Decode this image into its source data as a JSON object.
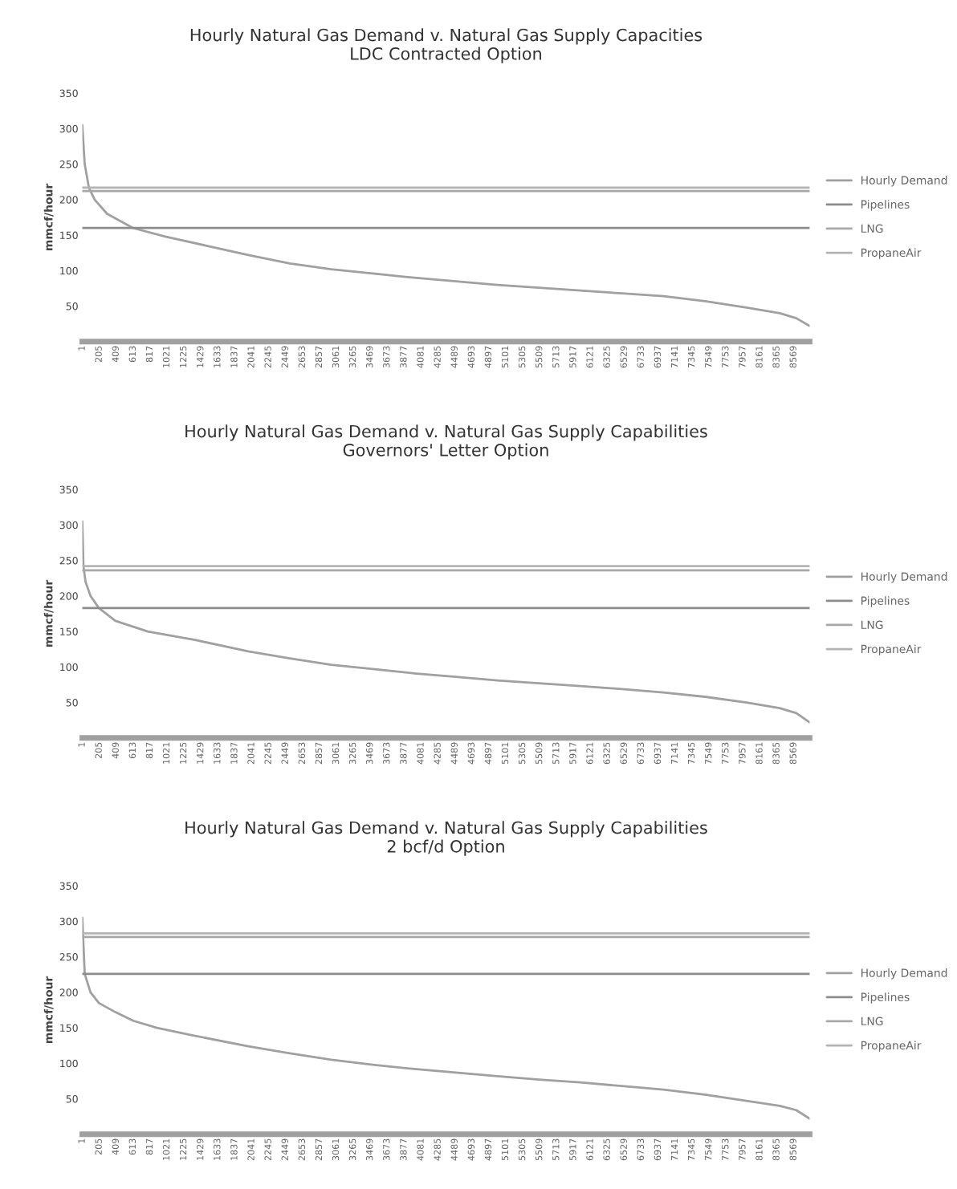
{
  "chart_data": [
    {
      "type": "line",
      "title": "Hourly Natural Gas Demand v. Natural Gas Supply Capacities\nLDC Contracted Option",
      "ylabel": "mmcf/hour",
      "xlim": [
        1,
        8760
      ],
      "ylim": [
        0,
        350
      ],
      "yticks": [
        50,
        100,
        150,
        200,
        250,
        300,
        350
      ],
      "xticks": [
        1,
        205,
        409,
        613,
        817,
        1021,
        1225,
        1429,
        1633,
        1837,
        2041,
        2245,
        2449,
        2653,
        2857,
        3061,
        3265,
        3469,
        3673,
        3877,
        4081,
        4285,
        4489,
        4693,
        4897,
        5101,
        5305,
        5509,
        5713,
        5917,
        6121,
        6325,
        6529,
        6733,
        6937,
        7141,
        7345,
        7549,
        7753,
        7957,
        8161,
        8365,
        8569
      ],
      "grid": false,
      "legend": "right",
      "marker": "none",
      "line_style": "solid",
      "series": [
        {
          "name": "Hourly Demand",
          "color": "#a0a0a0",
          "x": [
            1,
            30,
            80,
            150,
            300,
            613,
            1000,
            1500,
            2000,
            2500,
            3000,
            3500,
            4000,
            4500,
            5000,
            5500,
            6000,
            6500,
            7000,
            7500,
            8000,
            8400,
            8600,
            8760
          ],
          "values": [
            305,
            250,
            217,
            200,
            180,
            160,
            148,
            135,
            122,
            110,
            102,
            96,
            90,
            85,
            80,
            76,
            72,
            68,
            64,
            57,
            48,
            40,
            33,
            22
          ]
        },
        {
          "name": "Pipelines",
          "color": "#8c8c8c",
          "x": [
            1,
            8760
          ],
          "values": [
            160,
            160
          ]
        },
        {
          "name": "LNG",
          "color": "#a8a8a8",
          "x": [
            1,
            8760
          ],
          "values": [
            212,
            212
          ]
        },
        {
          "name": "PropaneAir",
          "color": "#b4b4b4",
          "x": [
            1,
            8760
          ],
          "values": [
            217,
            217
          ]
        }
      ]
    },
    {
      "type": "line",
      "title": "Hourly Natural Gas Demand v. Natural Gas Supply Capabilities\nGovernors' Letter Option",
      "ylabel": "mmcf/hour",
      "xlim": [
        1,
        8760
      ],
      "ylim": [
        0,
        350
      ],
      "yticks": [
        50,
        100,
        150,
        200,
        250,
        300,
        350
      ],
      "xticks": [
        1,
        205,
        409,
        613,
        817,
        1021,
        1225,
        1429,
        1633,
        1837,
        2041,
        2245,
        2449,
        2653,
        2857,
        3061,
        3265,
        3469,
        3673,
        3877,
        4081,
        4285,
        4489,
        4693,
        4897,
        5101,
        5305,
        5509,
        5713,
        5917,
        6121,
        6325,
        6529,
        6733,
        6937,
        7141,
        7345,
        7549,
        7753,
        7957,
        8161,
        8365,
        8569
      ],
      "grid": false,
      "legend": "right",
      "marker": "none",
      "line_style": "solid",
      "series": [
        {
          "name": "Hourly Demand",
          "color": "#a0a0a0",
          "x": [
            1,
            15,
            40,
            100,
            200,
            400,
            790,
            1360,
            2000,
            2500,
            3000,
            3500,
            4000,
            4500,
            5000,
            5500,
            6000,
            6500,
            7000,
            7500,
            8000,
            8400,
            8600,
            8760
          ],
          "values": [
            305,
            242,
            220,
            200,
            183,
            165,
            150,
            138,
            122,
            112,
            103,
            97,
            91,
            86,
            81,
            77,
            73,
            69,
            64,
            58,
            50,
            42,
            35,
            22
          ]
        },
        {
          "name": "Pipelines",
          "color": "#8c8c8c",
          "x": [
            1,
            8760
          ],
          "values": [
            183,
            183
          ]
        },
        {
          "name": "LNG",
          "color": "#a8a8a8",
          "x": [
            1,
            8760
          ],
          "values": [
            236,
            236
          ]
        },
        {
          "name": "PropaneAir",
          "color": "#b4b4b4",
          "x": [
            1,
            8760
          ],
          "values": [
            242,
            242
          ]
        }
      ]
    },
    {
      "type": "line",
      "title": "Hourly Natural Gas Demand v. Natural Gas Supply Capabilities\n2 bcf/d Option",
      "ylabel": "mmcf/hour",
      "xlim": [
        1,
        8760
      ],
      "ylim": [
        0,
        350
      ],
      "yticks": [
        50,
        100,
        150,
        200,
        250,
        300,
        350
      ],
      "xticks": [
        1,
        205,
        409,
        613,
        817,
        1021,
        1225,
        1429,
        1633,
        1837,
        2041,
        2245,
        2449,
        2653,
        2857,
        3061,
        3265,
        3469,
        3673,
        3877,
        4081,
        4285,
        4489,
        4693,
        4897,
        5101,
        5305,
        5509,
        5713,
        5917,
        6121,
        6325,
        6529,
        6733,
        6937,
        7141,
        7345,
        7549,
        7753,
        7957,
        8161,
        8365,
        8569
      ],
      "grid": false,
      "legend": "right",
      "marker": "none",
      "line_style": "solid",
      "series": [
        {
          "name": "Hourly Demand",
          "color": "#a0a0a0",
          "x": [
            1,
            30,
            100,
            200,
            400,
            613,
            900,
            1300,
            2000,
            2500,
            3000,
            3500,
            4000,
            4500,
            5000,
            5500,
            6000,
            6500,
            7000,
            7500,
            8000,
            8400,
            8600,
            8760
          ],
          "values": [
            305,
            226,
            200,
            185,
            172,
            160,
            150,
            140,
            124,
            114,
            105,
            98,
            92,
            87,
            82,
            77,
            73,
            68,
            63,
            56,
            47,
            40,
            34,
            22
          ]
        },
        {
          "name": "Pipelines",
          "color": "#8c8c8c",
          "x": [
            1,
            8760
          ],
          "values": [
            226,
            226
          ]
        },
        {
          "name": "LNG",
          "color": "#a8a8a8",
          "x": [
            1,
            8760
          ],
          "values": [
            278,
            278
          ]
        },
        {
          "name": "PropaneAir",
          "color": "#b4b4b4",
          "x": [
            1,
            8760
          ],
          "values": [
            283,
            283
          ]
        }
      ]
    }
  ]
}
